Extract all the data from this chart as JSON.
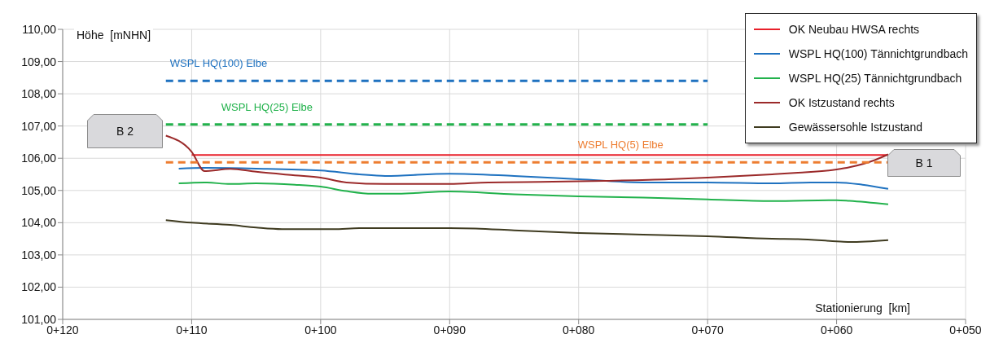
{
  "chart_data": {
    "type": "line",
    "ylabel": "Höhe  [mNHN]",
    "xlabel": "Stationierung  [km]",
    "categories": [
      "0+120",
      null,
      null,
      null,
      null,
      null,
      null,
      null,
      null,
      null,
      "0+110",
      null,
      null,
      null,
      null,
      null,
      null,
      null,
      null,
      null,
      "0+100",
      null,
      null,
      null,
      null,
      null,
      null,
      null,
      null,
      null,
      "0+090",
      null,
      null,
      null,
      null,
      null,
      null,
      null,
      null,
      null,
      "0+080",
      null,
      null,
      null,
      null,
      null,
      null,
      null,
      null,
      null,
      "0+070",
      null,
      null,
      null,
      null,
      null,
      null,
      null,
      null,
      null,
      "0+060",
      null,
      null,
      null,
      null,
      null,
      null,
      null,
      null,
      null,
      "0+050"
    ],
    "ylim": [
      101,
      110
    ],
    "yticks": [
      {
        "value": 101,
        "label": "101,00"
      },
      {
        "value": 102,
        "label": "102,00"
      },
      {
        "value": 103,
        "label": "103,00"
      },
      {
        "value": 104,
        "label": "104,00"
      },
      {
        "value": 105,
        "label": "105,00"
      },
      {
        "value": 106,
        "label": "106,00"
      },
      {
        "value": 107,
        "label": "107,00"
      },
      {
        "value": 108,
        "label": "108,00"
      },
      {
        "value": 109,
        "label": "109,00"
      },
      {
        "value": 110,
        "label": "110,00"
      }
    ],
    "grid": true,
    "legend": "top right",
    "marker": "none",
    "line_style": "solid",
    "series": [
      {
        "name": "OK Neubau HWSA rechts",
        "color": "#e8202a",
        "values": [
          null,
          null,
          null,
          null,
          null,
          null,
          null,
          null,
          null,
          null,
          106.1,
          null,
          null,
          null,
          null,
          null,
          null,
          null,
          null,
          null,
          null,
          null,
          null,
          null,
          null,
          null,
          null,
          null,
          null,
          null,
          null,
          null,
          null,
          null,
          null,
          null,
          null,
          null,
          null,
          null,
          null,
          null,
          null,
          null,
          null,
          null,
          null,
          null,
          null,
          null,
          null,
          null,
          null,
          null,
          null,
          null,
          null,
          null,
          null,
          null,
          null,
          null,
          null,
          null,
          106.1,
          null,
          null,
          null,
          null,
          null,
          null
        ]
      },
      {
        "name": "WSPL HQ(100) Tännichtgrundbach",
        "color": "#1f72c0",
        "values": [
          null,
          null,
          null,
          null,
          null,
          null,
          null,
          null,
          null,
          105.68,
          null,
          105.7,
          null,
          null,
          null,
          105.68,
          null,
          null,
          null,
          null,
          105.62,
          null,
          null,
          105.5,
          null,
          105.45,
          null,
          null,
          null,
          null,
          105.52,
          null,
          null,
          null,
          null,
          105.45,
          null,
          null,
          null,
          null,
          105.35,
          null,
          null,
          null,
          null,
          105.25,
          null,
          null,
          null,
          null,
          105.25,
          null,
          null,
          null,
          null,
          105.22,
          null,
          null,
          105.25,
          null,
          105.25,
          null,
          105.18,
          null,
          105.05,
          null,
          null,
          null,
          null,
          null,
          null
        ]
      },
      {
        "name": "WSPL HQ(25) Tännichtgrundbach",
        "color": "#22b24c",
        "values": [
          null,
          null,
          null,
          null,
          null,
          null,
          null,
          null,
          null,
          105.22,
          null,
          105.25,
          null,
          105.2,
          null,
          105.22,
          null,
          null,
          105.18,
          null,
          105.12,
          null,
          104.98,
          null,
          104.9,
          null,
          104.9,
          null,
          null,
          null,
          104.97,
          null,
          null,
          null,
          null,
          104.88,
          null,
          null,
          null,
          null,
          104.82,
          null,
          null,
          null,
          null,
          104.78,
          null,
          null,
          null,
          null,
          104.72,
          null,
          null,
          null,
          null,
          104.67,
          null,
          null,
          null,
          null,
          104.7,
          104.68,
          null,
          null,
          104.57,
          null,
          null,
          null,
          null,
          null,
          null
        ]
      },
      {
        "name": "OK Istzustand rechts",
        "color": "#9b2a2a",
        "values": [
          null,
          null,
          null,
          null,
          null,
          null,
          null,
          null,
          106.7,
          null,
          106.2,
          105.6,
          null,
          105.67,
          null,
          105.58,
          null,
          null,
          105.47,
          null,
          105.4,
          null,
          105.25,
          null,
          null,
          105.2,
          null,
          null,
          105.2,
          null,
          105.2,
          null,
          null,
          105.25,
          null,
          null,
          null,
          null,
          105.27,
          null,
          null,
          null,
          105.3,
          null,
          null,
          null,
          null,
          105.35,
          null,
          null,
          105.4,
          null,
          null,
          null,
          null,
          105.5,
          null,
          105.55,
          null,
          null,
          105.65,
          105.72,
          null,
          105.95,
          106.12,
          null,
          null,
          null,
          null,
          null,
          null
        ]
      },
      {
        "name": "Gewässersohle Istzustand",
        "color": "#3f3b20",
        "values": [
          null,
          null,
          null,
          null,
          null,
          null,
          null,
          null,
          104.08,
          null,
          104.0,
          null,
          null,
          103.93,
          null,
          103.85,
          null,
          103.8,
          null,
          null,
          null,
          103.8,
          null,
          103.83,
          null,
          null,
          null,
          null,
          null,
          null,
          103.83,
          null,
          103.82,
          null,
          null,
          103.76,
          null,
          null,
          null,
          null,
          103.68,
          null,
          null,
          null,
          null,
          103.63,
          null,
          null,
          null,
          null,
          103.58,
          null,
          null,
          null,
          null,
          103.5,
          null,
          103.49,
          null,
          null,
          103.42,
          103.4,
          null,
          null,
          103.46,
          null,
          null,
          null,
          null,
          null,
          null
        ]
      },
      {
        "name": "WSPL HQ(100) Elbe",
        "color": "#1f72c0",
        "line_style": "dashed",
        "values": [
          null,
          null,
          null,
          null,
          null,
          null,
          null,
          null,
          108.4,
          null,
          null,
          null,
          null,
          null,
          null,
          null,
          null,
          null,
          null,
          null,
          null,
          null,
          null,
          null,
          null,
          null,
          null,
          null,
          null,
          null,
          null,
          null,
          null,
          null,
          null,
          null,
          null,
          null,
          null,
          null,
          null,
          null,
          null,
          null,
          null,
          null,
          null,
          null,
          null,
          null,
          108.4,
          null,
          null,
          null,
          null,
          null,
          null,
          null,
          null,
          null,
          null,
          null,
          null,
          null,
          null,
          null,
          null,
          null,
          null,
          null,
          null
        ]
      },
      {
        "name": "WSPL HQ(25) Elbe",
        "color": "#22b24c",
        "line_style": "dashed",
        "values": [
          null,
          null,
          null,
          null,
          null,
          null,
          null,
          null,
          107.05,
          null,
          null,
          null,
          null,
          null,
          null,
          null,
          null,
          null,
          null,
          null,
          null,
          null,
          null,
          null,
          null,
          null,
          null,
          null,
          null,
          null,
          null,
          null,
          null,
          null,
          null,
          null,
          null,
          null,
          null,
          null,
          null,
          null,
          null,
          null,
          null,
          null,
          null,
          null,
          null,
          null,
          107.05,
          null,
          null,
          null,
          null,
          null,
          null,
          null,
          null,
          null,
          null,
          null,
          null,
          null,
          null,
          null,
          null,
          null,
          null,
          null,
          null
        ]
      },
      {
        "name": "WSPL HQ(5) Elbe",
        "color": "#ed7d31",
        "line_style": "dashed",
        "values": [
          null,
          null,
          null,
          null,
          null,
          null,
          null,
          null,
          105.87,
          null,
          null,
          null,
          null,
          null,
          null,
          null,
          null,
          null,
          null,
          null,
          null,
          null,
          null,
          null,
          null,
          null,
          null,
          null,
          null,
          null,
          null,
          null,
          null,
          null,
          null,
          null,
          null,
          null,
          null,
          null,
          null,
          null,
          null,
          null,
          null,
          null,
          null,
          null,
          null,
          null,
          null,
          null,
          null,
          null,
          null,
          null,
          null,
          null,
          null,
          null,
          null,
          null,
          null,
          null,
          105.87,
          null,
          null,
          null,
          null,
          null,
          null
        ]
      }
    ],
    "annotations": [
      "B 2",
      "B 1"
    ]
  }
}
